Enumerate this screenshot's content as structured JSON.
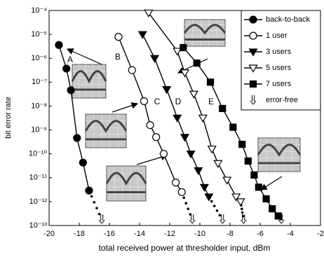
{
  "chart_data": {
    "type": "line",
    "y_label": "bit error rate",
    "x_label": "total received power at thresholder input, dBm",
    "log_y": true,
    "xlim": [
      -20,
      -2
    ],
    "xticks": [
      -20,
      -18,
      -16,
      -14,
      -12,
      -10,
      -8,
      -6,
      -4,
      -2
    ],
    "ylim": [
      1e-13,
      0.0001
    ],
    "yticks": [
      {
        "value": 0.0001,
        "label": "10⁻⁴"
      },
      {
        "value": 1e-05,
        "label": "10⁻⁵"
      },
      {
        "value": 1e-06,
        "label": "10⁻⁶"
      },
      {
        "value": 1e-07,
        "label": "10⁻⁷"
      },
      {
        "value": 1e-08,
        "label": "10⁻⁸"
      },
      {
        "value": 1e-09,
        "label": "10⁻⁹"
      },
      {
        "value": 1e-10,
        "label": "10⁻¹⁰"
      },
      {
        "value": 1e-11,
        "label": "10⁻¹¹"
      },
      {
        "value": 1e-12,
        "label": "10⁻¹²"
      },
      {
        "value": 1e-13,
        "label": "10⁻¹³"
      }
    ],
    "legend": "upper right",
    "error_free_label": "error-free",
    "series": [
      {
        "name": "back-to-back",
        "tag": "A",
        "marker": "circle",
        "color": "#000",
        "fill": "#000",
        "error_free_x": -16.5,
        "x": [
          -19.35,
          -18.85,
          -18.55,
          -18.15,
          -17.75,
          -17.35
        ],
        "values": [
          3.6e-06,
          3.7e-07,
          4.6e-08,
          4.6e-10,
          4.3e-11,
          2.9e-12
        ]
      },
      {
        "name": "1 user",
        "tag": "B",
        "marker": "circle",
        "color": "#000",
        "fill": "#fff",
        "error_free_x": -10.5,
        "x": [
          -15.4,
          -14.5,
          -13.7,
          -13.3,
          -12.9,
          -12.4,
          -11.6,
          -11.2
        ],
        "values": [
          7.9e-06,
          3.2e-07,
          1.6e-08,
          1.6e-09,
          5e-10,
          1e-10,
          6.3e-12,
          2.5e-12
        ]
      },
      {
        "name": "3 users",
        "tag": "C",
        "marker": "triangle",
        "color": "#000",
        "fill": "#000",
        "error_free_x": -8.5,
        "x": [
          -13.8,
          -13.0,
          -12.2,
          -11.5,
          -11.0,
          -10.6,
          -10.1,
          -9.7,
          -9.4
        ],
        "values": [
          1e-05,
          1e-06,
          5e-08,
          3.2e-09,
          5e-10,
          1e-10,
          2e-11,
          4e-12,
          1.6e-12
        ]
      },
      {
        "name": "5 users",
        "tag": "D",
        "marker": "triangle",
        "color": "#000",
        "fill": "#fff",
        "error_free_x": -7.1,
        "x": [
          -13.4,
          -11.5,
          -11.0,
          -10.4,
          -9.8,
          -9.2,
          -8.8,
          -8.2,
          -7.6,
          -7.3
        ],
        "values": [
          8e-05,
          2e-06,
          2.5e-07,
          3.2e-08,
          3.2e-09,
          1.6e-10,
          4e-11,
          8e-12,
          1.6e-12,
          1e-12
        ]
      },
      {
        "name": "7 users",
        "tag": "E",
        "marker": "square",
        "color": "#000",
        "fill": "#000",
        "error_free_x": -4.6,
        "x": [
          -11.1,
          -10.2,
          -9.3,
          -8.5,
          -7.8,
          -7.2,
          -6.8,
          -6.4,
          -6.1,
          -5.6,
          -5.2,
          -4.8
        ],
        "values": [
          2.8e-06,
          6.3e-07,
          1e-07,
          7.9e-09,
          1.3e-09,
          2.5e-10,
          5e-11,
          1.3e-11,
          4e-12,
          1.3e-12,
          5e-13,
          2.5e-13
        ]
      }
    ]
  }
}
